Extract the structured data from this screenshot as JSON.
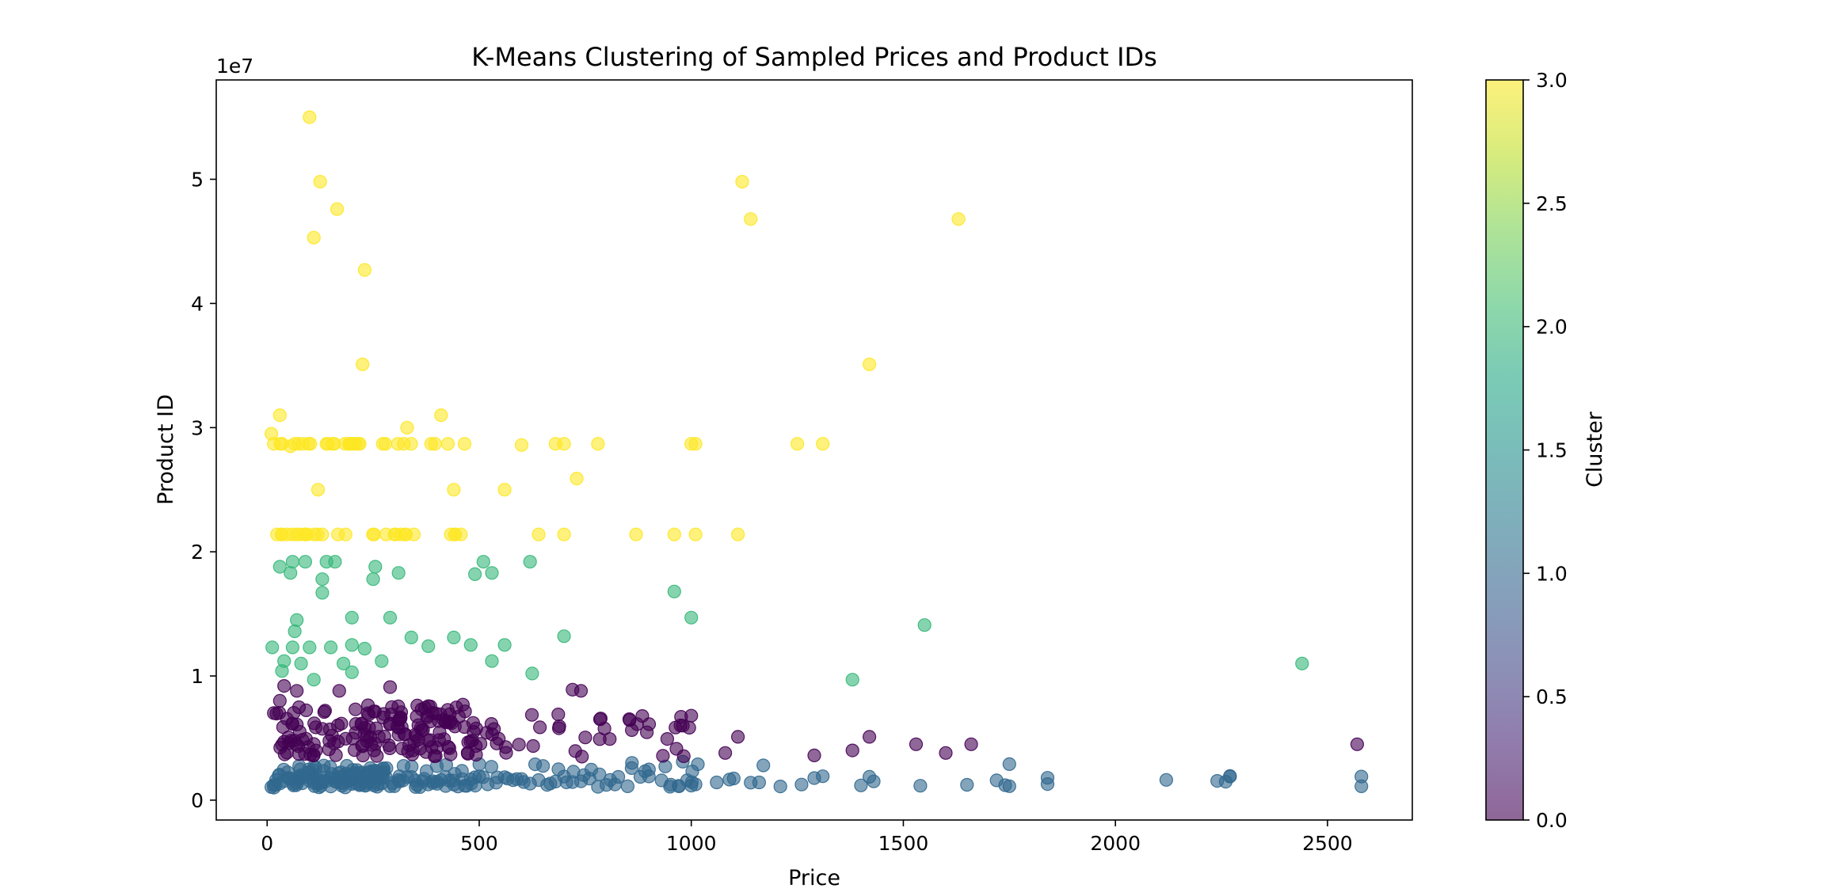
{
  "chart_data": {
    "type": "scatter",
    "title": "K-Means Clustering of Sampled Prices and Product IDs",
    "xlabel": "Price",
    "ylabel": "Product ID",
    "y_offset_label": "1e7",
    "xlim": [
      -120,
      2700
    ],
    "ylim": [
      -1600000,
      58000000
    ],
    "x_ticks": [
      0,
      500,
      1000,
      1500,
      2000,
      2500
    ],
    "x_tick_labels": [
      "0",
      "500",
      "1000",
      "1500",
      "2000",
      "2500"
    ],
    "y_ticks": [
      0,
      10000000,
      20000000,
      30000000,
      40000000,
      50000000
    ],
    "y_tick_labels": [
      "0",
      "1",
      "2",
      "3",
      "4",
      "5"
    ],
    "grid": false,
    "marker_alpha": 0.6,
    "colormap": "viridis",
    "colorbar": {
      "label": "Cluster",
      "range": [
        0,
        3
      ],
      "ticks": [
        0,
        0.5,
        1,
        1.5,
        2,
        2.5,
        3
      ],
      "tick_labels": [
        "0.0",
        "0.5",
        "1.0",
        "1.5",
        "2.0",
        "2.5",
        "3.0"
      ],
      "colors": [
        "#440154",
        "#482475",
        "#414487",
        "#355f8d",
        "#2a788e",
        "#21918c",
        "#22a884",
        "#44bf70",
        "#7ad151",
        "#bddf26",
        "#fde725"
      ]
    },
    "cluster_colors": {
      "0": "#440154",
      "1": "#31688e",
      "2": "#35b779",
      "3": "#fde725"
    },
    "points": {
      "x": [
        10,
        20,
        30,
        40,
        50,
        60,
        70,
        80,
        90,
        100,
        110,
        120,
        130,
        140,
        150,
        160,
        170,
        180,
        190,
        200,
        210,
        220,
        230,
        240,
        250,
        260,
        270,
        280,
        290,
        300,
        310,
        320,
        330,
        340,
        350,
        360,
        370,
        380,
        390,
        400,
        410,
        420,
        430,
        440,
        450,
        460,
        470,
        480,
        490,
        500,
        520,
        540,
        560,
        580,
        600,
        620,
        640,
        660,
        680,
        700,
        720,
        740,
        760,
        780,
        800,
        820,
        850,
        880,
        900,
        930,
        950,
        970,
        990,
        1000,
        1010,
        1060,
        1090,
        1100,
        1140,
        1160,
        1210,
        1260,
        1290,
        1310,
        1400,
        1420,
        1430,
        1540,
        1650,
        1720,
        1740,
        1750,
        1840,
        2120,
        2240,
        2260,
        2270,
        2580,
        15,
        35,
        55,
        75,
        95,
        125,
        155,
        185,
        215,
        245,
        275,
        305,
        335,
        365,
        395,
        425,
        455,
        485,
        515,
        545,
        575,
        605,
        635,
        665,
        695,
        725,
        755,
        785,
        815,
        845,
        875,
        905,
        935,
        965,
        995,
        1020,
        20,
        45,
        70,
        95,
        120,
        145,
        170,
        195,
        220,
        245,
        270,
        295,
        320,
        345,
        370,
        395,
        420,
        445,
        470,
        495,
        520,
        545,
        570,
        600,
        640,
        680,
        720,
        760,
        820,
        880,
        940,
        980,
        1000,
        10,
        30,
        50,
        70,
        90,
        110,
        130,
        150,
        170,
        190,
        210,
        230,
        250,
        270,
        290,
        310,
        330,
        350,
        370,
        390,
        410,
        430,
        450,
        470,
        490,
        510,
        530,
        560,
        600,
        640,
        10,
        15,
        20,
        25,
        30,
        35,
        40,
        45,
        50,
        55,
        60,
        65,
        70,
        75,
        80,
        85,
        90,
        95,
        100,
        105,
        110,
        115,
        120,
        125,
        130,
        135,
        140,
        145,
        150,
        155,
        160,
        165,
        170,
        175,
        180,
        185,
        190,
        195,
        200,
        205,
        210,
        215,
        220,
        225,
        230,
        235,
        240,
        245,
        250,
        255,
        260,
        265,
        270,
        275,
        280,
        285,
        290,
        295,
        300,
        10,
        20,
        30,
        40,
        50,
        60,
        70,
        80,
        90,
        100,
        110,
        120,
        130,
        140,
        150,
        160,
        170,
        180,
        190,
        200,
        210,
        220,
        230,
        240,
        250,
        260,
        270,
        280,
        290,
        300,
        310,
        320,
        330,
        340,
        350,
        360,
        370,
        380,
        390,
        400,
        410,
        420,
        430,
        440,
        450,
        460,
        470,
        480,
        490,
        500,
        530,
        560,
        600,
        640,
        680,
        720,
        760,
        800,
        850,
        900,
        940,
        960,
        980,
        1000,
        1020,
        1110,
        1290,
        1380,
        1420,
        1530,
        1600,
        1660,
        2570,
        25,
        45,
        65,
        85,
        105,
        125,
        145,
        165,
        185,
        205,
        225,
        245,
        265,
        285,
        305,
        325,
        345,
        365,
        395,
        425,
        455,
        485,
        515,
        545,
        575,
        605,
        635,
        665,
        695,
        725,
        755,
        785,
        815,
        845,
        875,
        905,
        935,
        975,
        20,
        40,
        60,
        80,
        100,
        120,
        140,
        160,
        180,
        200,
        220,
        240,
        260,
        280,
        300,
        320,
        340,
        360,
        380,
        410,
        440,
        470,
        500,
        530,
        560,
        590,
        620,
        650,
        680,
        710,
        740,
        35,
        55,
        75,
        95,
        115,
        135,
        155,
        175,
        195,
        215,
        235,
        255,
        275,
        295,
        315,
        335,
        355,
        375,
        395,
        425,
        455,
        485,
        515,
        545,
        575,
        605,
        635,
        665,
        695,
        725,
        755,
        785,
        30,
        50,
        70,
        90,
        110,
        130,
        150,
        170,
        190,
        210,
        230,
        250,
        270,
        290,
        310,
        330,
        360,
        390,
        420,
        450,
        480,
        510,
        540,
        570,
        600,
        620,
        680,
        700,
        720,
        740,
        25,
        40,
        55,
        70,
        85,
        100,
        115,
        130,
        150,
        170,
        190,
        210,
        230,
        250,
        280,
        310,
        380,
        430,
        470,
        510,
        540,
        610,
        650,
        700,
        750,
        850,
        1000,
        1060,
        1110,
        1170,
        1240,
        1300,
        1350,
        1380,
        1410,
        1480,
        1550,
        1600,
        1700,
        1800,
        1900,
        2000,
        2100,
        2200,
        2300,
        2400,
        2500,
        2560,
        2600,
        2650,
        30,
        60,
        90,
        120,
        150,
        180,
        210,
        240,
        270,
        300,
        330,
        360,
        390,
        420,
        450,
        480,
        520,
        560,
        600,
        640,
        680,
        720,
        760,
        800,
        840,
        880,
        920,
        960,
        1000,
        15,
        30,
        45,
        60,
        75,
        90,
        105,
        120,
        135,
        150,
        165,
        180,
        195,
        210,
        225,
        240,
        255,
        270,
        285,
        300,
        330,
        360,
        390,
        420,
        450,
        480,
        520,
        560,
        600,
        640,
        680,
        720,
        760,
        800,
        840,
        880,
        920,
        960,
        1000,
        15,
        30,
        45,
        60,
        75,
        90,
        105,
        120,
        135,
        150,
        165,
        180,
        195,
        210,
        225,
        240,
        255,
        270,
        285,
        300,
        330,
        360,
        390,
        420,
        450,
        480,
        520,
        560,
        600,
        640,
        680,
        720,
        760,
        800,
        840,
        880,
        920,
        960,
        1000,
        15,
        30,
        45,
        60,
        75,
        90,
        105,
        120,
        135,
        150,
        165,
        180,
        195,
        210,
        225,
        240,
        255,
        270,
        285,
        300,
        330,
        360,
        390,
        420,
        450,
        480,
        520,
        560,
        600,
        640,
        680,
        720,
        760,
        800,
        840,
        880,
        920,
        960,
        1000,
        15,
        30,
        45,
        60,
        75,
        90,
        105,
        120,
        135,
        150,
        165,
        180,
        195,
        210,
        225,
        240,
        255,
        270,
        285,
        300,
        330,
        360,
        390,
        420,
        450,
        480,
        520,
        560,
        600,
        640,
        680,
        720,
        760,
        800,
        840,
        880,
        920,
        960,
        1000,
        15,
        30,
        45,
        60,
        75,
        90,
        105,
        120,
        135,
        150,
        165,
        180,
        195,
        210,
        225,
        240,
        255,
        270,
        285,
        300,
        330,
        360,
        390,
        420,
        450,
        480,
        520,
        560,
        600,
        640,
        680,
        720,
        760,
        800,
        840,
        880,
        920,
        960,
        1000,
        15,
        30,
        45,
        60,
        75,
        90,
        105,
        120,
        135,
        150,
        165,
        180,
        195,
        210,
        225,
        240,
        255,
        270,
        285,
        300,
        330,
        360,
        390,
        420,
        450,
        480,
        520,
        560,
        600,
        640,
        680,
        720,
        760,
        800,
        840,
        880,
        920,
        960,
        1000
      ]
    }
  }
}
